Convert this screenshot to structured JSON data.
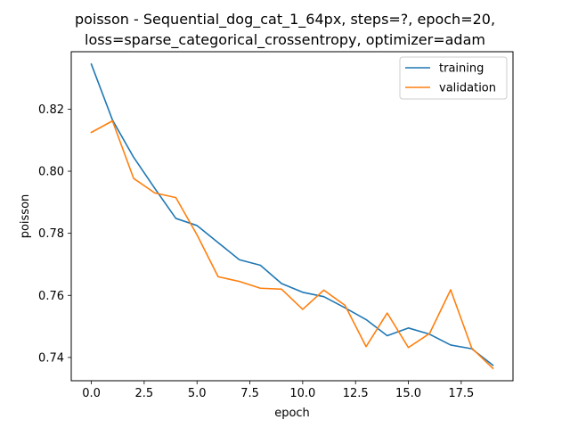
{
  "chart_data": {
    "type": "line",
    "title_line1": "poisson - Sequential_dog_cat_1_64px, steps=?, epoch=20,",
    "title_line2": "loss=sparse_categorical_crossentropy, optimizer=adam",
    "xlabel": "epoch",
    "ylabel": "poisson",
    "xlim": [
      -0.95,
      19.95
    ],
    "ylim": [
      0.7325,
      0.8385
    ],
    "xticks": [
      0.0,
      2.5,
      5.0,
      7.5,
      10.0,
      12.5,
      15.0,
      17.5
    ],
    "xtick_labels": [
      "0.0",
      "2.5",
      "5.0",
      "7.5",
      "10.0",
      "12.5",
      "15.0",
      "17.5"
    ],
    "yticks": [
      0.74,
      0.76,
      0.78,
      0.8,
      0.82
    ],
    "ytick_labels": [
      "0.74",
      "0.76",
      "0.78",
      "0.80",
      "0.82"
    ],
    "grid": false,
    "legend_position": "top-right",
    "x": [
      0,
      1,
      2,
      3,
      4,
      5,
      6,
      7,
      8,
      9,
      10,
      11,
      12,
      13,
      14,
      15,
      16,
      17,
      18,
      19
    ],
    "series": [
      {
        "name": "training",
        "color": "#1f77b4",
        "values": [
          0.8345,
          0.8165,
          0.8045,
          0.7945,
          0.7848,
          0.7825,
          0.777,
          0.7715,
          0.7697,
          0.7638,
          0.761,
          0.7596,
          0.756,
          0.7522,
          0.747,
          0.7495,
          0.7475,
          0.744,
          0.7428,
          0.7375
        ]
      },
      {
        "name": "validation",
        "color": "#ff7f0e",
        "values": [
          0.8125,
          0.8162,
          0.7977,
          0.793,
          0.7915,
          0.7795,
          0.766,
          0.7645,
          0.7623,
          0.762,
          0.7555,
          0.7617,
          0.7568,
          0.7435,
          0.7543,
          0.7432,
          0.7477,
          0.7618,
          0.743,
          0.7365
        ]
      }
    ]
  }
}
